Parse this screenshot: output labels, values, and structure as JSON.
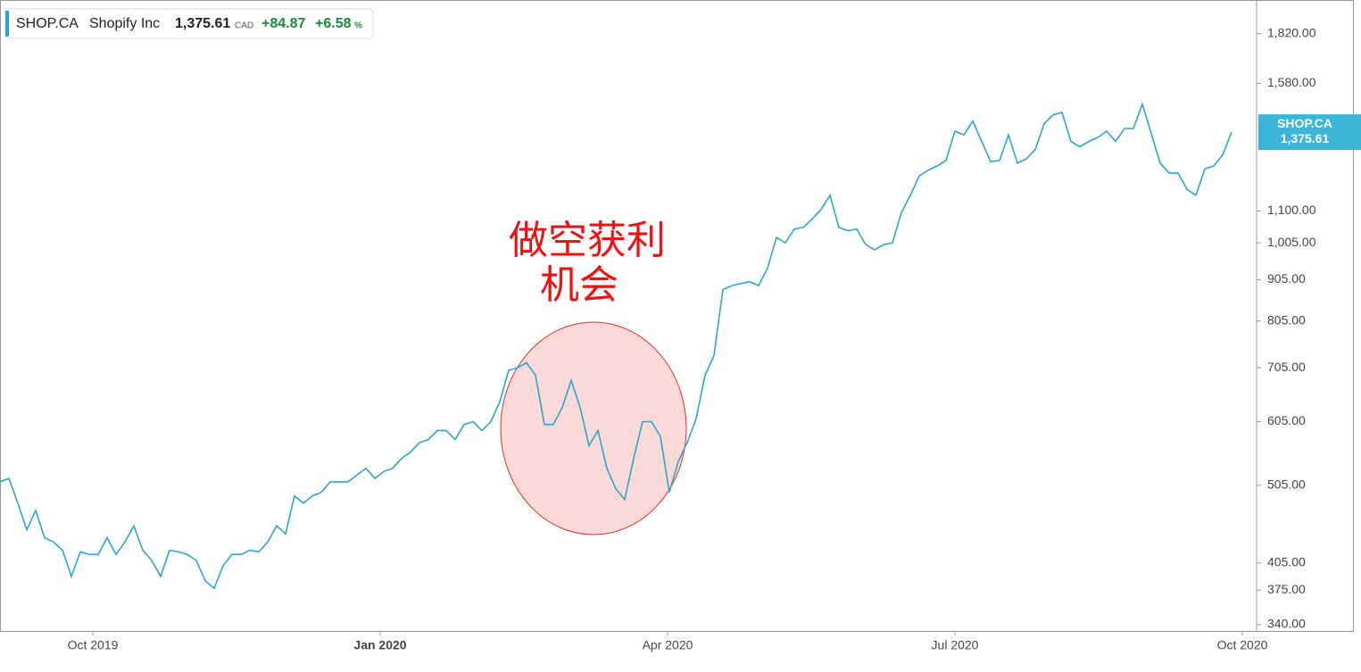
{
  "chart_data": {
    "type": "line",
    "header": {
      "symbol": "SHOP.CA",
      "name": "Shopify Inc",
      "price": "1,375.61",
      "currency": "CAD",
      "change": "+84.87",
      "change_pct": "+6.58",
      "pct_sign": "%"
    },
    "annotation": [
      "做空获利",
      "机会"
    ],
    "log_scale": true,
    "series": [
      {
        "name": "SHOP.CA",
        "color": "#2ba6cb",
        "values": [
          510,
          515,
          480,
          445,
          470,
          435,
          430,
          420,
          390,
          418,
          415,
          415,
          435,
          415,
          430,
          450,
          420,
          408,
          390,
          420,
          418,
          415,
          408,
          385,
          377,
          402,
          415,
          415,
          420,
          418,
          430,
          450,
          440,
          490,
          480,
          490,
          495,
          510,
          510,
          510,
          520,
          530,
          515,
          525,
          530,
          545,
          555,
          570,
          575,
          590,
          590,
          575,
          600,
          605,
          590,
          605,
          640,
          700,
          705,
          715,
          690,
          600,
          600,
          630,
          680,
          630,
          565,
          590,
          530,
          500,
          485,
          545,
          605,
          605,
          580,
          495,
          540,
          570,
          610,
          690,
          730,
          880,
          890,
          895,
          900,
          890,
          935,
          1020,
          1005,
          1045,
          1050,
          1075,
          1105,
          1150,
          1050,
          1040,
          1045,
          1000,
          985,
          1000,
          1005,
          1095,
          1150,
          1215,
          1235,
          1250,
          1270,
          1380,
          1365,
          1420,
          1340,
          1265,
          1270,
          1365,
          1260,
          1275,
          1310,
          1410,
          1445,
          1455,
          1340,
          1320,
          1340,
          1355,
          1380,
          1340,
          1390,
          1390,
          1490,
          1370,
          1260,
          1225,
          1225,
          1170,
          1150,
          1240,
          1250,
          1290,
          1375.61
        ]
      }
    ],
    "xlim": [
      0,
      140.8
    ],
    "xticks": [
      {
        "value": 10.4,
        "label": "Oct 2019"
      },
      {
        "value": 42.6,
        "label": "Jan 2020"
      },
      {
        "value": 74.8,
        "label": "Apr 2020"
      },
      {
        "value": 107,
        "label": "Jul 2020"
      },
      {
        "value": 139.2,
        "label": "Oct 2020"
      }
    ],
    "ylim": [
      334,
      2002
    ],
    "yticks": [
      {
        "value": 340,
        "label": "340.00"
      },
      {
        "value": 375,
        "label": "375.00"
      },
      {
        "value": 405,
        "label": "405.00"
      },
      {
        "value": 505,
        "label": "505.00"
      },
      {
        "value": 605,
        "label": "605.00"
      },
      {
        "value": 705,
        "label": "705.00"
      },
      {
        "value": 805,
        "label": "805.00"
      },
      {
        "value": 905,
        "label": "905.00"
      },
      {
        "value": 1005,
        "label": "1,005.00"
      },
      {
        "value": 1100,
        "label": "1,100.00"
      },
      {
        "value": 1580,
        "label": "1,580.00"
      },
      {
        "value": 1820,
        "label": "1,820.00"
      }
    ]
  }
}
